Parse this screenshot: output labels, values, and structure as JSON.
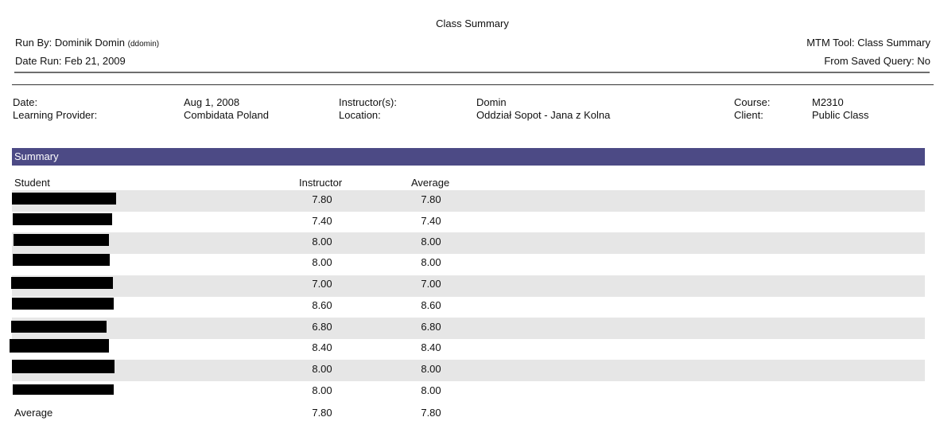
{
  "report": {
    "title": "Class Summary",
    "run_by_label": "Run By: Dominik Domin",
    "run_by_user": "(ddomin)",
    "date_run": "Date Run: Feb 21, 2009",
    "tool": "MTM Tool: Class Summary",
    "saved_query": "From Saved Query: No"
  },
  "info": {
    "date_label": "Date:",
    "date_value": "Aug 1, 2008",
    "provider_label": "Learning Provider:",
    "provider_value": "Combidata Poland",
    "instructor_label": "Instructor(s):",
    "instructor_value": "Domin",
    "location_label": "Location:",
    "location_value": "Oddział Sopot - Jana z Kolna",
    "course_label": "Course:",
    "course_value": "M2310",
    "client_label": "Client:",
    "client_value": "Public Class"
  },
  "summary": {
    "section_title": "Summary",
    "headers": {
      "student": "Student",
      "instructor": "Instructor",
      "average": "Average"
    },
    "rows": [
      {
        "instructor": "7.80",
        "average": "7.80"
      },
      {
        "instructor": "7.40",
        "average": "7.40"
      },
      {
        "instructor": "8.00",
        "average": "8.00"
      },
      {
        "instructor": "8.00",
        "average": "8.00"
      },
      {
        "instructor": "7.00",
        "average": "7.00"
      },
      {
        "instructor": "8.60",
        "average": "8.60"
      },
      {
        "instructor": "6.80",
        "average": "6.80"
      },
      {
        "instructor": "8.40",
        "average": "8.40"
      },
      {
        "instructor": "8.00",
        "average": "8.00"
      },
      {
        "instructor": "8.00",
        "average": "8.00"
      }
    ],
    "footer": {
      "label": "Average",
      "instructor": "7.80",
      "average": "7.80"
    }
  }
}
